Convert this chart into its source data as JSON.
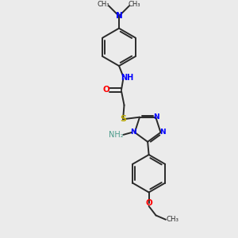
{
  "background_color": "#ebebeb",
  "bond_color": "#2a2a2a",
  "nitrogen_color": "#0000ff",
  "oxygen_color": "#ff0000",
  "sulfur_color": "#bbaa00",
  "teal_color": "#4a9a8a",
  "figsize": [
    3.0,
    3.0
  ],
  "dpi": 100,
  "xlim": [
    0,
    10
  ],
  "ylim": [
    0,
    10
  ]
}
